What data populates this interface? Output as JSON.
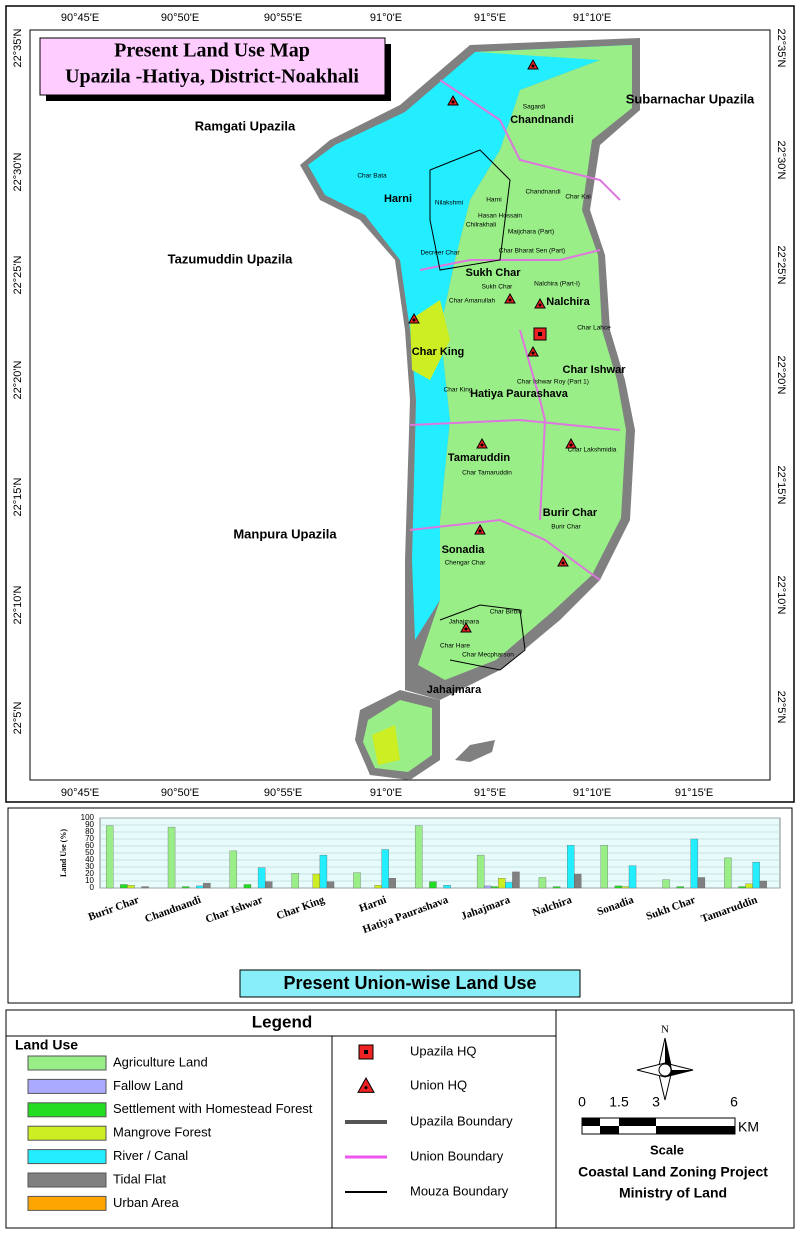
{
  "map": {
    "title": [
      "Present Land Use  Map",
      "Upazila -Hatiya, District-Noakhali"
    ],
    "lon_top": [
      "90°45'E",
      "90°50'E",
      "90°55'E",
      "91°0'E",
      "91°5'E",
      "91°10'E"
    ],
    "lon_bottom": [
      "90°45'E",
      "90°50'E",
      "90°55'E",
      "91°0'E",
      "91°5'E",
      "91°10'E",
      "91°15'E"
    ],
    "lat_left": [
      "22°35'N",
      "22°30'N",
      "22°25'N",
      "22°20'N",
      "22°15'N",
      "22°10'N",
      "22°5'N"
    ],
    "lat_right": [
      "22°35'N",
      "22°30'N",
      "22°25'N",
      "22°20'N",
      "22°15'N",
      "22°10'N",
      "22°5'N"
    ],
    "upazilas": [
      "Subarnachar Upazila",
      "Ramgati Upazila",
      "Tazumuddin Upazila",
      "Manpura Upazila"
    ],
    "unions": [
      "Chandnandi",
      "Harni",
      "Sukh Char",
      "Nalchira",
      "Char King",
      "Char Ishwar",
      "Hatiya Paurashava",
      "Tamaruddin",
      "Burir Char",
      "Sonadia",
      "Jahajmara"
    ],
    "mouzas": [
      "Sagardi",
      "Char Bata",
      "Nilakshmi",
      "Harni",
      "Chandnandi",
      "Char Kal",
      "Hasan Hossain",
      "Chilrakhali",
      "Maijchara (Part)",
      "Char Bharat Sen (Part)",
      "Decreer Char",
      "Sukh Char",
      "Nalchira (Part-I)",
      "Char Amanullah",
      "Char Lahce",
      "Char King",
      "Char Ishwar Roy (Part 1)",
      "Char Lakshmidia",
      "Char Tamaruddin",
      "Burir Char",
      "Chengar Char",
      "Char Birbiri",
      "Jahajmara",
      "Char Hare",
      "Char Mecpharson"
    ]
  },
  "chart_data": {
    "type": "bar",
    "title": "Present Union-wise Land Use",
    "y_label": "Land Use (%)",
    "categories": [
      "Burir Char",
      "Chandnandi",
      "Char Ishwar",
      "Char King",
      "Harni",
      "Hatiya Paurashava",
      "Jahajmara",
      "Nalchira",
      "Sonadia",
      "Sukh Char",
      "Tamaruddin"
    ],
    "series": [
      {
        "name": "Agriculture Land",
        "color": "#99ee88",
        "values": [
          89,
          87,
          53,
          21,
          22,
          89,
          47,
          15,
          61,
          12,
          43
        ]
      },
      {
        "name": "Fallow Land",
        "color": "#aaaaff",
        "values": [
          0,
          0,
          0,
          0,
          0,
          0,
          3,
          0,
          0,
          0,
          0
        ]
      },
      {
        "name": "Settlement with Homestead Forest",
        "color": "#22dd22",
        "values": [
          5,
          2,
          5,
          0,
          0,
          9,
          2,
          2,
          3,
          2,
          2
        ]
      },
      {
        "name": "Mangrove Forest",
        "color": "#ccee22",
        "values": [
          4,
          0,
          0,
          20,
          4,
          0,
          14,
          0,
          2,
          0,
          6
        ]
      },
      {
        "name": "River / Canal",
        "color": "#22eeff",
        "values": [
          0,
          3,
          29,
          47,
          55,
          4,
          8,
          61,
          32,
          70,
          37
        ]
      },
      {
        "name": "Tidal Flat",
        "color": "#808080",
        "values": [
          2,
          7,
          9,
          9,
          14,
          0,
          23,
          20,
          0,
          15,
          10
        ]
      },
      {
        "name": "Urban Area",
        "color": "#ffa500",
        "values": [
          0,
          0,
          0,
          0,
          0,
          0,
          0,
          0,
          0,
          0,
          0
        ]
      }
    ],
    "ylim": [
      0,
      100
    ],
    "yticks": [
      0,
      10,
      20,
      30,
      40,
      50,
      60,
      70,
      80,
      90,
      100
    ],
    "grid": true
  },
  "legend": {
    "title": "Legend",
    "land_use_title": "Land Use",
    "symbols": [
      "Upazila HQ",
      "Union HQ",
      "Upazila Boundary",
      "Union Boundary",
      "Mouza Boundary"
    ]
  },
  "scale": {
    "ticks": [
      "0",
      "1.5",
      "3",
      "6"
    ],
    "unit": "KM",
    "label": "Scale",
    "north": "N",
    "credits": [
      "Coastal Land Zoning Project",
      "Ministry of Land"
    ]
  }
}
